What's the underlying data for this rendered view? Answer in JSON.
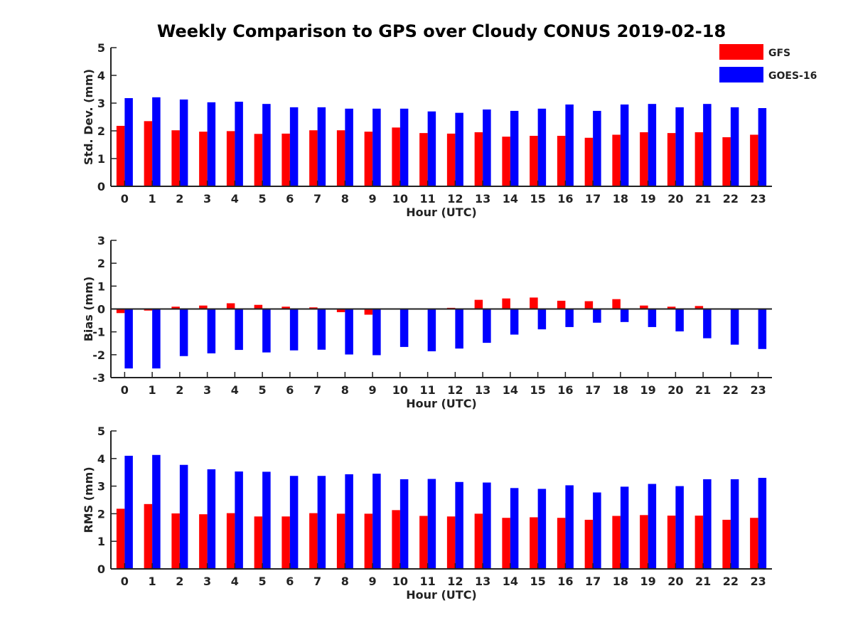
{
  "title": "Weekly Comparison to GPS over Cloudy CONUS 2019-02-18",
  "legend": {
    "placement": "top-right",
    "entries": [
      {
        "label": "GFS",
        "color": "#ff0000"
      },
      {
        "label": "GOES-16",
        "color": "#0000ff"
      }
    ]
  },
  "chart_data": [
    {
      "type": "bar",
      "xlabel": "Hour (UTC)",
      "ylabel": "Std. Dev. (mm)",
      "ylim": [
        0,
        5
      ],
      "yticks": [
        "0",
        "1",
        "2",
        "3",
        "4",
        "5"
      ],
      "categories": [
        "0",
        "1",
        "2",
        "3",
        "4",
        "5",
        "6",
        "7",
        "8",
        "9",
        "10",
        "11",
        "12",
        "13",
        "14",
        "15",
        "16",
        "17",
        "18",
        "19",
        "20",
        "21",
        "22",
        "23"
      ],
      "series": [
        {
          "name": "GFS",
          "color": "#ff0000",
          "values": [
            2.18,
            2.35,
            2.02,
            1.97,
            1.99,
            1.89,
            1.9,
            2.02,
            2.02,
            1.97,
            2.12,
            1.92,
            1.9,
            1.95,
            1.79,
            1.82,
            1.82,
            1.75,
            1.86,
            1.95,
            1.92,
            1.95,
            1.77,
            1.86
          ]
        },
        {
          "name": "GOES-16",
          "color": "#0000ff",
          "values": [
            3.18,
            3.21,
            3.13,
            3.03,
            3.05,
            2.97,
            2.85,
            2.85,
            2.8,
            2.8,
            2.8,
            2.7,
            2.65,
            2.77,
            2.72,
            2.8,
            2.95,
            2.72,
            2.95,
            2.97,
            2.85,
            2.97,
            2.85,
            2.82
          ]
        }
      ]
    },
    {
      "type": "bar",
      "xlabel": "Hour (UTC)",
      "ylabel": "Bias (mm)",
      "ylim": [
        -3,
        3
      ],
      "yticks": [
        "-3",
        "-2",
        "-1",
        "0",
        "1",
        "2",
        "3"
      ],
      "categories": [
        "0",
        "1",
        "2",
        "3",
        "4",
        "5",
        "6",
        "7",
        "8",
        "9",
        "10",
        "11",
        "12",
        "13",
        "14",
        "15",
        "16",
        "17",
        "18",
        "19",
        "20",
        "21",
        "22",
        "23"
      ],
      "series": [
        {
          "name": "GFS",
          "color": "#ff0000",
          "values": [
            -0.18,
            -0.07,
            0.1,
            0.15,
            0.25,
            0.18,
            0.1,
            0.07,
            -0.14,
            -0.25,
            0.03,
            0.0,
            0.05,
            0.4,
            0.46,
            0.5,
            0.36,
            0.34,
            0.43,
            0.15,
            0.1,
            0.13,
            0.0,
            -0.02
          ]
        },
        {
          "name": "GOES-16",
          "color": "#0000ff",
          "values": [
            -2.6,
            -2.6,
            -2.06,
            -1.94,
            -1.79,
            -1.9,
            -1.81,
            -1.78,
            -1.99,
            -2.02,
            -1.66,
            -1.85,
            -1.73,
            -1.48,
            -1.12,
            -0.89,
            -0.79,
            -0.6,
            -0.57,
            -0.79,
            -0.98,
            -1.28,
            -1.56,
            -1.75
          ]
        }
      ]
    },
    {
      "type": "bar",
      "xlabel": "Hour (UTC)",
      "ylabel": "RMS (mm)",
      "ylim": [
        0,
        5
      ],
      "yticks": [
        "0",
        "1",
        "2",
        "3",
        "4",
        "5"
      ],
      "categories": [
        "0",
        "1",
        "2",
        "3",
        "4",
        "5",
        "6",
        "7",
        "8",
        "9",
        "10",
        "11",
        "12",
        "13",
        "14",
        "15",
        "16",
        "17",
        "18",
        "19",
        "20",
        "21",
        "22",
        "23"
      ],
      "series": [
        {
          "name": "GFS",
          "color": "#ff0000",
          "values": [
            2.18,
            2.35,
            2.01,
            1.98,
            2.02,
            1.9,
            1.9,
            2.02,
            2.0,
            2.0,
            2.13,
            1.92,
            1.9,
            2.0,
            1.85,
            1.87,
            1.85,
            1.78,
            1.92,
            1.95,
            1.93,
            1.93,
            1.78,
            1.85
          ]
        },
        {
          "name": "GOES-16",
          "color": "#0000ff",
          "values": [
            4.1,
            4.13,
            3.77,
            3.61,
            3.53,
            3.52,
            3.37,
            3.37,
            3.43,
            3.45,
            3.25,
            3.26,
            3.15,
            3.13,
            2.93,
            2.9,
            3.03,
            2.77,
            2.98,
            3.08,
            3.0,
            3.25,
            3.25,
            3.3
          ]
        }
      ]
    }
  ]
}
